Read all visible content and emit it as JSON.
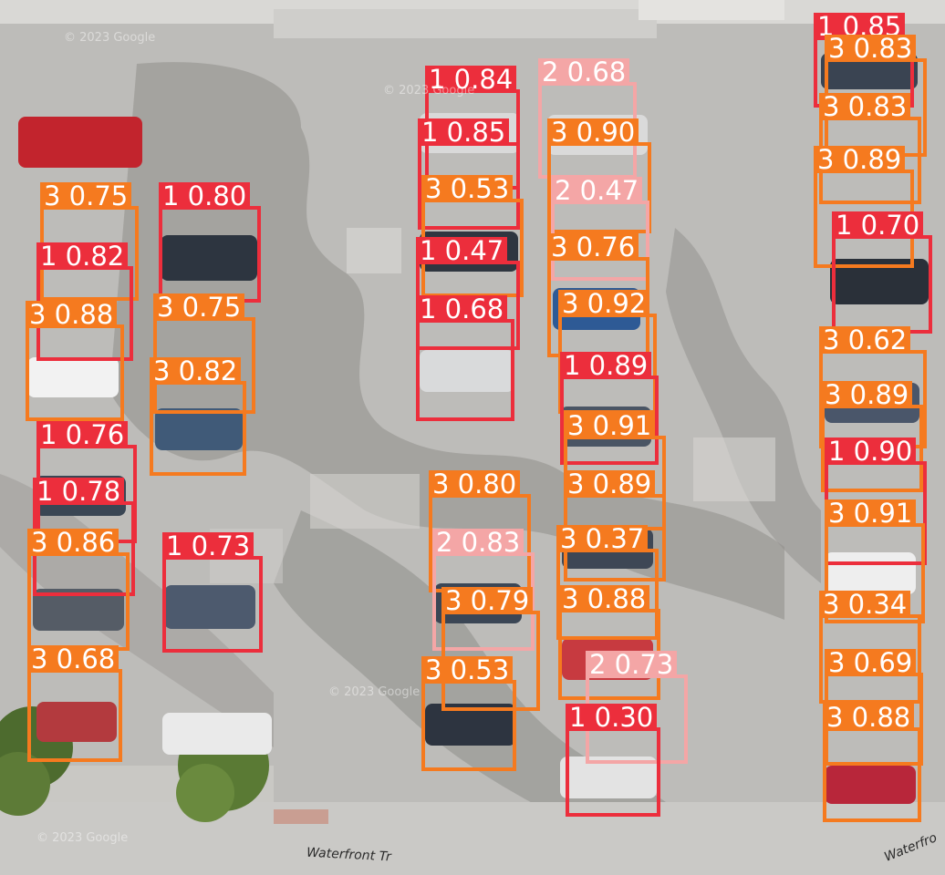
{
  "image": {
    "description": "Overhead satellite view of a parking lot with car detection boxes",
    "class_colors": {
      "1": "#ec2e3c",
      "2": "#f4a6a6",
      "3": "#f57a1f"
    }
  },
  "street_labels": [
    "Waterfront Tr",
    "Waterfro"
  ],
  "watermarks": [
    "© 2023 Google",
    "© 2023 Google",
    "© 2023 Google",
    "© 2023 Google"
  ],
  "detections": [
    {
      "class": "1",
      "label": "1 0.85"
    },
    {
      "class": "3",
      "label": "3 0.83"
    },
    {
      "class": "1",
      "label": "1 0.84"
    },
    {
      "class": "2",
      "label": "2 0.68"
    },
    {
      "class": "1",
      "label": "1 0.85"
    },
    {
      "class": "3",
      "label": "3 0.90"
    },
    {
      "class": "3",
      "label": "3 0.83"
    },
    {
      "class": "3",
      "label": "3 0.89"
    },
    {
      "class": "3",
      "label": "3 0.75"
    },
    {
      "class": "1",
      "label": "1 0.80"
    },
    {
      "class": "3",
      "label": "3 0.53"
    },
    {
      "class": "2",
      "label": "2 0.47"
    },
    {
      "class": "1",
      "label": "1 0.70"
    },
    {
      "class": "1",
      "label": "1 0.82"
    },
    {
      "class": "1",
      "label": "1 0.47"
    },
    {
      "class": "3",
      "label": "3 0.76"
    },
    {
      "class": "3",
      "label": "3 0.88"
    },
    {
      "class": "3",
      "label": "3 0.75"
    },
    {
      "class": "1",
      "label": "1 0.68"
    },
    {
      "class": "3",
      "label": "3 0.92"
    },
    {
      "class": "3",
      "label": "3 0.62"
    },
    {
      "class": "3",
      "label": "3 0.82"
    },
    {
      "class": "1",
      "label": "1 0.89"
    },
    {
      "class": "3",
      "label": "3 0.89"
    },
    {
      "class": "3",
      "label": "3 0.91"
    },
    {
      "class": "1",
      "label": "1 0.76"
    },
    {
      "class": "1",
      "label": "1 0.90"
    },
    {
      "class": "3",
      "label": "3 0.89"
    },
    {
      "class": "3",
      "label": "3 0.80"
    },
    {
      "class": "1",
      "label": "1 0.78"
    },
    {
      "class": "3",
      "label": "3 0.91"
    },
    {
      "class": "3",
      "label": "3 0.86"
    },
    {
      "class": "2",
      "label": "2 0.83"
    },
    {
      "class": "3",
      "label": "3 0.37"
    },
    {
      "class": "1",
      "label": "1 0.73"
    },
    {
      "class": "3",
      "label": "3 0.79"
    },
    {
      "class": "3",
      "label": "3 0.88"
    },
    {
      "class": "3",
      "label": "3 0.34"
    },
    {
      "class": "3",
      "label": "3 0.68"
    },
    {
      "class": "3",
      "label": "3 0.53"
    },
    {
      "class": "2",
      "label": "2 0.73"
    },
    {
      "class": "3",
      "label": "3 0.69"
    },
    {
      "class": "1",
      "label": "1 0.30"
    },
    {
      "class": "3",
      "label": "3 0.88"
    }
  ]
}
